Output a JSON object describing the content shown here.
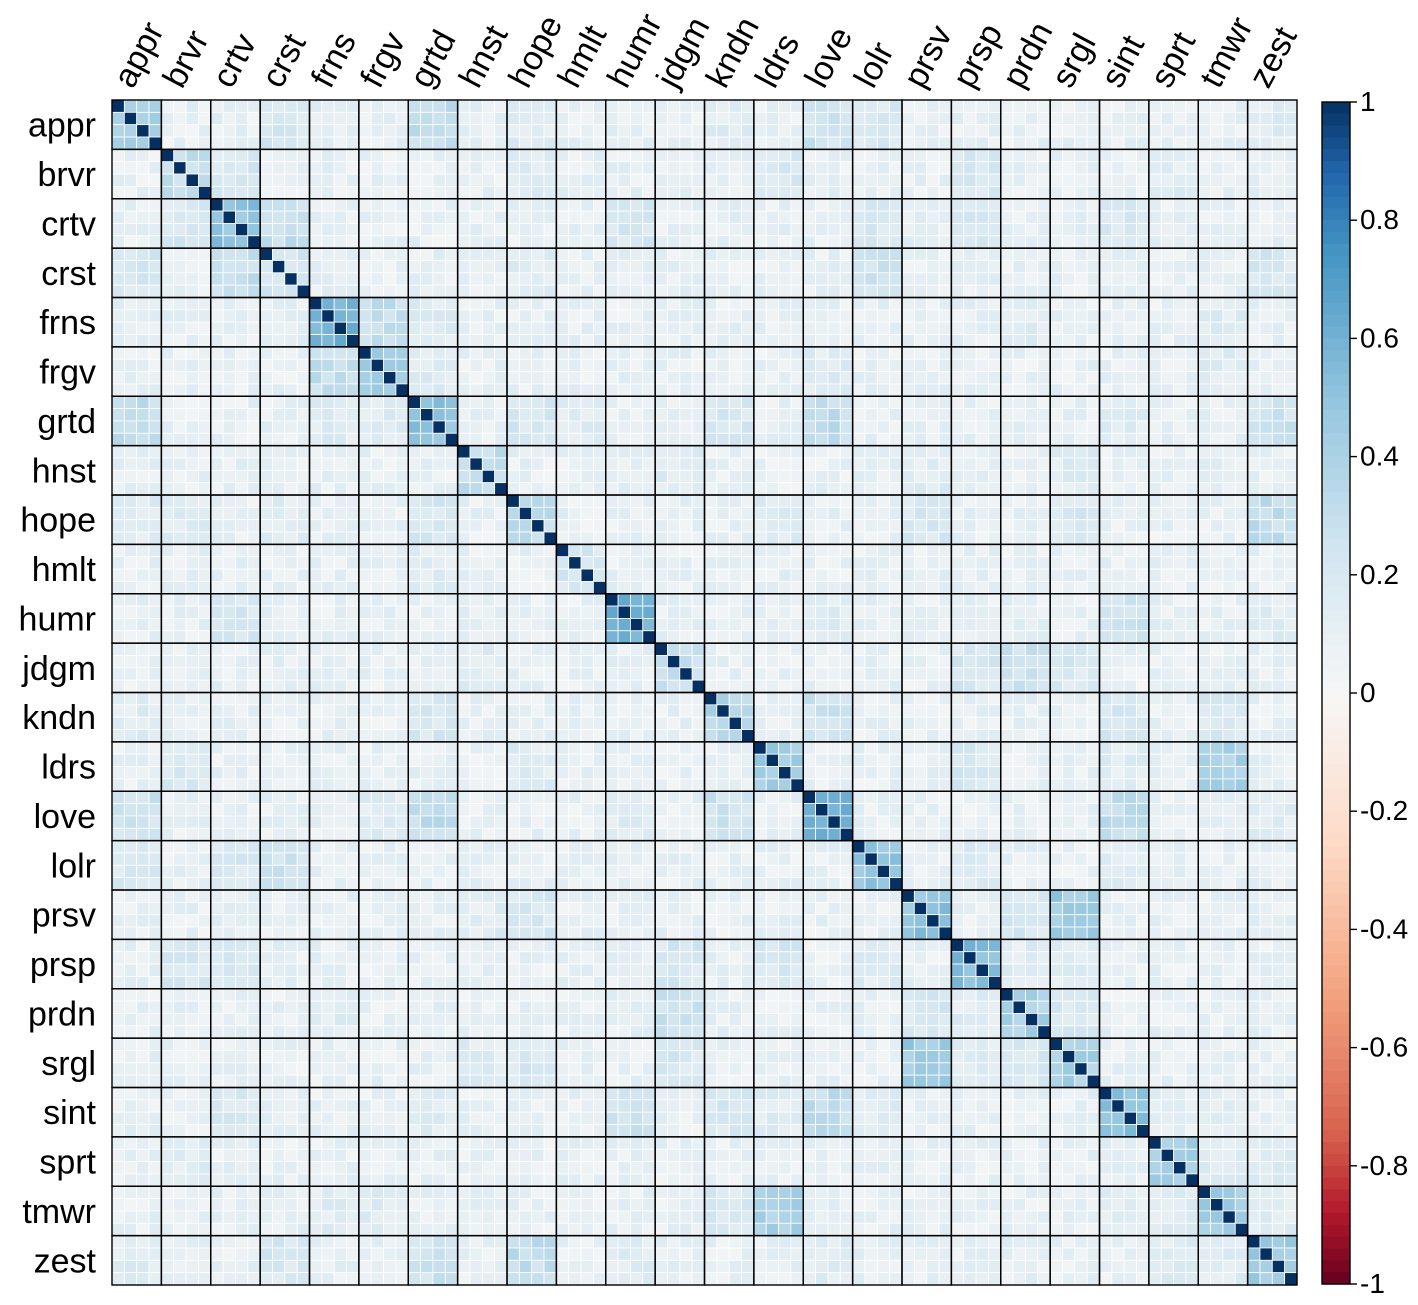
{
  "chart_data": {
    "type": "heatmap",
    "title": "",
    "xlabel": "",
    "ylabel": "",
    "variables": [
      "appr",
      "brvr",
      "crtv",
      "crst",
      "frns",
      "frgv",
      "grtd",
      "hnst",
      "hope",
      "hmlt",
      "humr",
      "jdgm",
      "kndn",
      "ldrs",
      "love",
      "lolr",
      "prsv",
      "prsp",
      "prdn",
      "srgl",
      "sint",
      "sprt",
      "tmwr",
      "zest"
    ],
    "items_per_variable": 4,
    "value_range": [
      -1,
      1
    ],
    "colorbar_ticks": [
      "1",
      "0.8",
      "0.6",
      "0.4",
      "0.2",
      "0",
      "-0.2",
      "-0.4",
      "-0.6",
      "-0.8",
      "-1"
    ],
    "colorscale": {
      "positive_max": "#053061",
      "zero": "#f7f7f7",
      "negative_min": "#67001f"
    },
    "diagonal_value": 1,
    "within_block_correlation": [
      0.45,
      0.3,
      0.5,
      0.25,
      0.6,
      0.45,
      0.5,
      0.3,
      0.3,
      0.2,
      0.6,
      0.3,
      0.35,
      0.45,
      0.6,
      0.5,
      0.5,
      0.55,
      0.4,
      0.4,
      0.5,
      0.4,
      0.45,
      0.45
    ],
    "between_block_correlation": [
      {
        "pair": [
          "appr",
          "grtd"
        ],
        "value": 0.3
      },
      {
        "pair": [
          "appr",
          "love"
        ],
        "value": 0.25
      },
      {
        "pair": [
          "appr",
          "crst"
        ],
        "value": 0.2
      },
      {
        "pair": [
          "appr",
          "lolr"
        ],
        "value": 0.2
      },
      {
        "pair": [
          "appr",
          "hope"
        ],
        "value": 0.15
      },
      {
        "pair": [
          "appr",
          "kndn"
        ],
        "value": 0.15
      },
      {
        "pair": [
          "appr",
          "zest"
        ],
        "value": 0.15
      },
      {
        "pair": [
          "brvr",
          "crtv"
        ],
        "value": 0.2
      },
      {
        "pair": [
          "brvr",
          "prsp"
        ],
        "value": 0.2
      },
      {
        "pair": [
          "brvr",
          "ldrs"
        ],
        "value": 0.2
      },
      {
        "pair": [
          "brvr",
          "hope"
        ],
        "value": 0.15
      },
      {
        "pair": [
          "brvr",
          "sprt"
        ],
        "value": 0.15
      },
      {
        "pair": [
          "crtv",
          "crst"
        ],
        "value": 0.3
      },
      {
        "pair": [
          "crtv",
          "humr"
        ],
        "value": 0.2
      },
      {
        "pair": [
          "crtv",
          "sint"
        ],
        "value": 0.2
      },
      {
        "pair": [
          "crtv",
          "prsp"
        ],
        "value": 0.2
      },
      {
        "pair": [
          "crtv",
          "lolr"
        ],
        "value": 0.2
      },
      {
        "pair": [
          "crst",
          "lolr"
        ],
        "value": 0.25
      },
      {
        "pair": [
          "crst",
          "zest"
        ],
        "value": 0.2
      },
      {
        "pair": [
          "crst",
          "hope"
        ],
        "value": 0.15
      },
      {
        "pair": [
          "frns",
          "frgv"
        ],
        "value": 0.3
      },
      {
        "pair": [
          "frns",
          "grtd"
        ],
        "value": 0.15
      },
      {
        "pair": [
          "frns",
          "prdn"
        ],
        "value": 0.15
      },
      {
        "pair": [
          "frns",
          "tmwr"
        ],
        "value": 0.15
      },
      {
        "pair": [
          "frgv",
          "grtd"
        ],
        "value": 0.15
      },
      {
        "pair": [
          "frgv",
          "love"
        ],
        "value": 0.15
      },
      {
        "pair": [
          "frgv",
          "tmwr"
        ],
        "value": 0.15
      },
      {
        "pair": [
          "grtd",
          "love"
        ],
        "value": 0.3
      },
      {
        "pair": [
          "grtd",
          "hope"
        ],
        "value": 0.2
      },
      {
        "pair": [
          "grtd",
          "zest"
        ],
        "value": 0.25
      },
      {
        "pair": [
          "grtd",
          "hmlt"
        ],
        "value": 0.15
      },
      {
        "pair": [
          "grtd",
          "sint"
        ],
        "value": 0.15
      },
      {
        "pair": [
          "grtd",
          "kndn"
        ],
        "value": 0.2
      },
      {
        "pair": [
          "hnst",
          "prsv"
        ],
        "value": 0.15
      },
      {
        "pair": [
          "hnst",
          "jdgm"
        ],
        "value": 0.15
      },
      {
        "pair": [
          "hnst",
          "srgl"
        ],
        "value": 0.15
      },
      {
        "pair": [
          "hope",
          "zest"
        ],
        "value": 0.3
      },
      {
        "pair": [
          "hope",
          "prsv"
        ],
        "value": 0.2
      },
      {
        "pair": [
          "hope",
          "srgl"
        ],
        "value": 0.2
      },
      {
        "pair": [
          "hope",
          "ldrs"
        ],
        "value": 0.15
      },
      {
        "pair": [
          "hmlt",
          "prdn"
        ],
        "value": 0.1
      },
      {
        "pair": [
          "humr",
          "sint"
        ],
        "value": 0.25
      },
      {
        "pair": [
          "humr",
          "love"
        ],
        "value": 0.15
      },
      {
        "pair": [
          "humr",
          "zest"
        ],
        "value": 0.15
      },
      {
        "pair": [
          "jdgm",
          "prdn"
        ],
        "value": 0.25
      },
      {
        "pair": [
          "jdgm",
          "prsp"
        ],
        "value": 0.2
      },
      {
        "pair": [
          "jdgm",
          "srgl"
        ],
        "value": 0.2
      },
      {
        "pair": [
          "kndn",
          "love"
        ],
        "value": 0.25
      },
      {
        "pair": [
          "kndn",
          "tmwr"
        ],
        "value": 0.2
      },
      {
        "pair": [
          "kndn",
          "sint"
        ],
        "value": 0.2
      },
      {
        "pair": [
          "ldrs",
          "tmwr"
        ],
        "value": 0.4
      },
      {
        "pair": [
          "ldrs",
          "prsp"
        ],
        "value": 0.2
      },
      {
        "pair": [
          "ldrs",
          "sint"
        ],
        "value": 0.15
      },
      {
        "pair": [
          "love",
          "sint"
        ],
        "value": 0.3
      },
      {
        "pair": [
          "love",
          "zest"
        ],
        "value": 0.15
      },
      {
        "pair": [
          "lolr",
          "sint"
        ],
        "value": 0.15
      },
      {
        "pair": [
          "lolr",
          "prsp"
        ],
        "value": 0.15
      },
      {
        "pair": [
          "prsv",
          "srgl"
        ],
        "value": 0.45
      },
      {
        "pair": [
          "prsv",
          "prdn"
        ],
        "value": 0.2
      },
      {
        "pair": [
          "prsp",
          "prdn"
        ],
        "value": 0.15
      },
      {
        "pair": [
          "prsp",
          "srgl"
        ],
        "value": 0.15
      },
      {
        "pair": [
          "prdn",
          "srgl"
        ],
        "value": 0.2
      },
      {
        "pair": [
          "sint",
          "tmwr"
        ],
        "value": 0.15
      },
      {
        "pair": [
          "sprt",
          "tmwr"
        ],
        "value": 0.15
      },
      {
        "pair": [
          "sprt",
          "zest"
        ],
        "value": 0.15
      },
      {
        "pair": [
          "tmwr",
          "zest"
        ],
        "value": 0.15
      }
    ],
    "default_between_block_correlation": 0.1,
    "grid": true,
    "legend": "colorbar-right"
  }
}
